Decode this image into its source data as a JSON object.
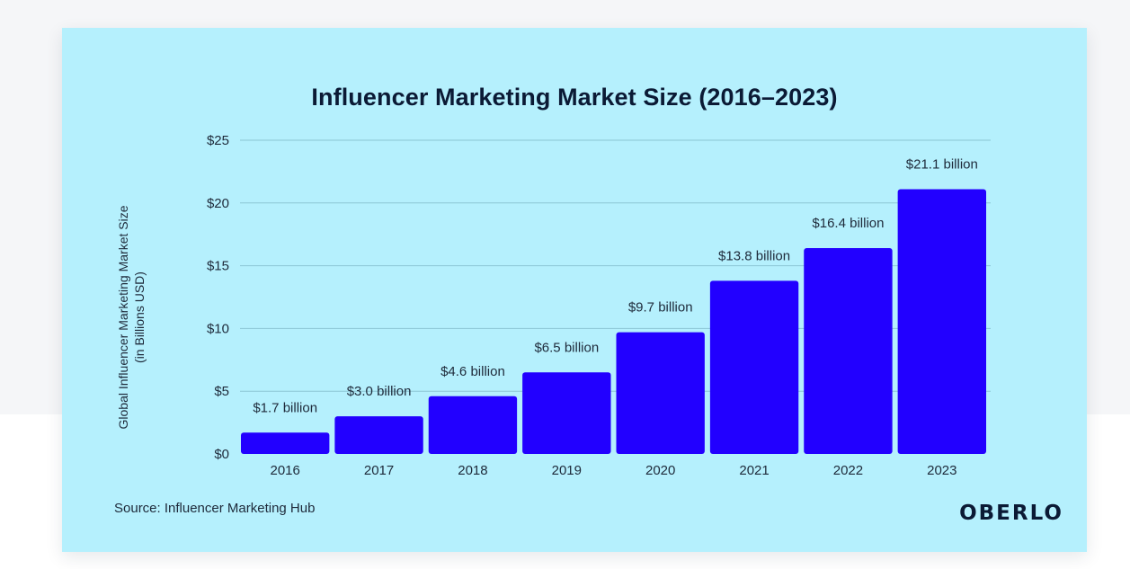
{
  "chart_data": {
    "type": "bar",
    "title": "Influencer Marketing Market Size (2016–2023)",
    "ylabel_lines": [
      "Global Influencer Marketing Market Size",
      "(in Billions USD)"
    ],
    "xlabel": "",
    "categories": [
      "2016",
      "2017",
      "2018",
      "2019",
      "2020",
      "2021",
      "2022",
      "2023"
    ],
    "values": [
      1.7,
      3.0,
      4.6,
      6.5,
      9.7,
      13.8,
      16.4,
      21.1
    ],
    "data_labels": [
      "$1.7 billion",
      "$3.0 billion",
      "$4.6 billion",
      "$6.5 billion",
      "$9.7 billion",
      "$13.8 billion",
      "$16.4 billion",
      "$21.1 billion"
    ],
    "y_ticks": [
      0,
      5,
      10,
      15,
      20,
      25
    ],
    "y_tick_labels": [
      "$0",
      "$5",
      "$10",
      "$15",
      "$20",
      "$25"
    ],
    "ylim": [
      0,
      25
    ],
    "grid": true,
    "legend": "none",
    "bar_color": "#2200ff"
  },
  "footer": {
    "source": "Source: Influencer Marketing Hub",
    "brand": "OBERLO"
  },
  "colors": {
    "card_background": "#b5f0fd",
    "gridline": "#8cc6d4",
    "text": "#1e2a3a"
  }
}
